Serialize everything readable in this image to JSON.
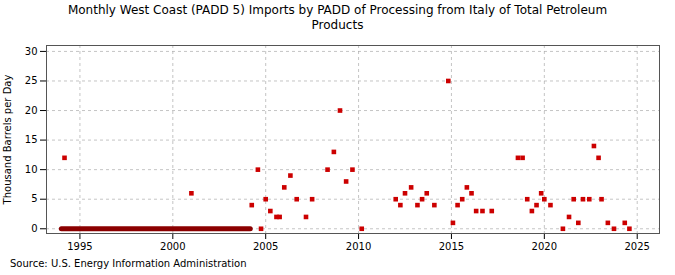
{
  "chart_data": {
    "type": "scatter",
    "title": "Monthly West Coast (PADD 5) Imports by PADD of Processing from Italy of Total Petroleum\nProducts",
    "ylabel": "Thousand Barrels per Day",
    "annotation": "Source: U.S. Energy Information Administration",
    "xlim": [
      1993.2,
      2026.2
    ],
    "ylim": [
      -0.8,
      31
    ],
    "xticks": [
      1995,
      2000,
      2005,
      2010,
      2015,
      2020,
      2025
    ],
    "yticks": [
      0,
      5,
      10,
      15,
      20,
      25,
      30
    ],
    "grid": true,
    "series": [
      {
        "type": "scatter",
        "marker": "square",
        "color": "#cc0000",
        "x": [
          1994.17,
          2001.0,
          2004.25,
          2004.58,
          2005.0,
          2005.25,
          2005.58,
          2005.75,
          2006.0,
          2006.33,
          2006.67,
          2007.17,
          2007.5,
          2008.33,
          2008.67,
          2009.0,
          2009.33,
          2009.67,
          2012.0,
          2012.25,
          2012.5,
          2012.83,
          2013.17,
          2013.42,
          2013.67,
          2014.08,
          2014.83,
          2015.08,
          2015.33,
          2015.58,
          2015.83,
          2016.08,
          2016.33,
          2016.67,
          2017.17,
          2018.58,
          2018.83,
          2019.08,
          2019.33,
          2019.58,
          2019.83,
          2020.0,
          2020.33,
          2021.33,
          2021.58,
          2021.83,
          2022.08,
          2022.42,
          2022.67,
          2022.92,
          2023.08,
          2023.42,
          2024.33
        ],
        "values": [
          12,
          6,
          4,
          10,
          5,
          3,
          2,
          2,
          7,
          9,
          5,
          2,
          5,
          10,
          13,
          20,
          8,
          10,
          5,
          4,
          6,
          7,
          4,
          5,
          6,
          4,
          25,
          1,
          4,
          5,
          7,
          6,
          3,
          3,
          3,
          12,
          12,
          5,
          3,
          4,
          6,
          5,
          4,
          2,
          5,
          1,
          5,
          5,
          14,
          12,
          5,
          1,
          1
        ]
      },
      {
        "type": "scatter",
        "marker": "square",
        "color": "#cc0000",
        "x": [
          2004.75,
          2010.17,
          2021.0,
          2023.75,
          2024.58
        ],
        "values": [
          0,
          0,
          0,
          0,
          0
        ]
      },
      {
        "type": "line",
        "line_style": "solid",
        "color": "#8b0000",
        "x": [
          1994.0,
          2004.17
        ],
        "values": [
          0,
          0
        ]
      }
    ]
  }
}
